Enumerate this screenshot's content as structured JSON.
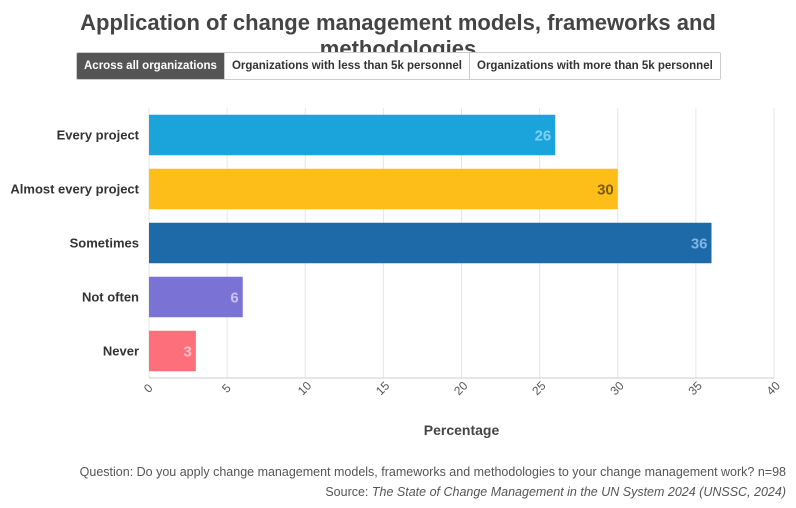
{
  "title": "Application of change management models, frameworks and methodologies",
  "tabs": [
    {
      "label": "Across all organizations",
      "active": true
    },
    {
      "label": "Organizations with less than 5k personnel",
      "active": false
    },
    {
      "label": "Organizations with more than 5k personnel",
      "active": false
    }
  ],
  "footer": {
    "question": "Question: Do you apply change management models, frameworks and methodologies to your change management work? n=98",
    "source_prefix": "Source: ",
    "source_title": "The State of Change Management in the UN System 2024 (UNSSC, 2024)"
  },
  "chart_data": {
    "type": "bar",
    "orientation": "horizontal",
    "categories": [
      "Every project",
      "Almost every project",
      "Sometimes",
      "Not often",
      "Never"
    ],
    "values": [
      26,
      30,
      36,
      6,
      3
    ],
    "colors": [
      "#1ba3dc",
      "#fdbe19",
      "#1e6aa8",
      "#7b72d6",
      "#fd6f7a"
    ],
    "label_colors": [
      "#7fd0f0",
      "#7a5a00",
      "#7fb6e6",
      "#c8c2f4",
      "#ffc2c8"
    ],
    "xlabel": "Percentage",
    "xlim": [
      0,
      40
    ],
    "xticks": [
      0,
      5,
      10,
      15,
      20,
      25,
      30,
      35,
      40
    ],
    "grid": true
  }
}
